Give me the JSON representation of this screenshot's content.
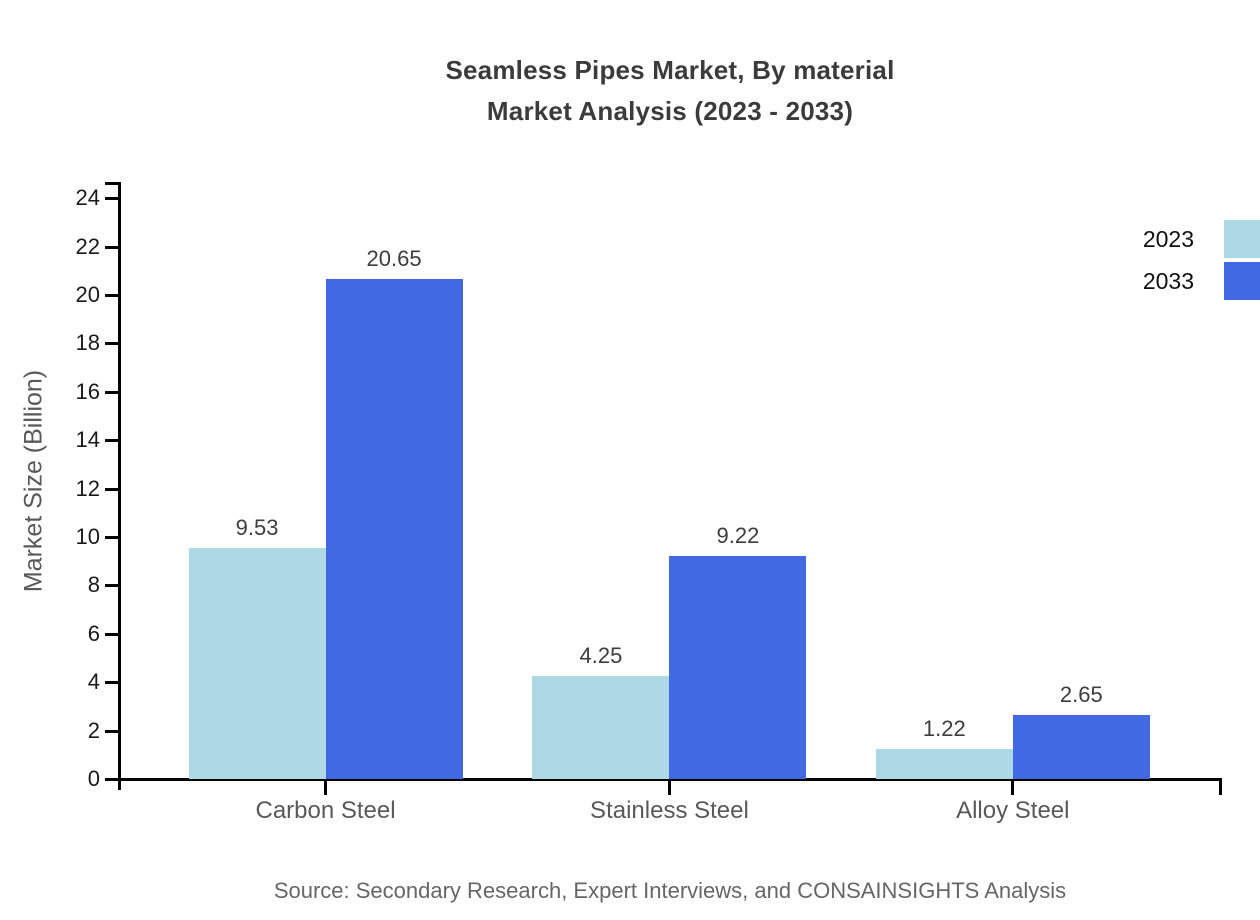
{
  "chart_data": {
    "type": "bar",
    "title_line1": "Seamless Pipes Market, By material",
    "title_line2": "Market Analysis (2023 - 2033)",
    "ylabel": "Market Size (Billion)",
    "xlabel": "",
    "categories": [
      "Carbon Steel",
      "Stainless Steel",
      "Alloy Steel"
    ],
    "series": [
      {
        "name": "2023",
        "color": "#ADD8E6",
        "values": [
          9.53,
          4.25,
          1.22
        ],
        "labels": [
          "9.53",
          "4.25",
          "1.22"
        ]
      },
      {
        "name": "2033",
        "color": "#4169E1",
        "values": [
          20.65,
          9.22,
          2.65
        ],
        "labels": [
          "20.65",
          "9.22",
          "2.65"
        ]
      }
    ],
    "y_ticks": [
      "0",
      "2",
      "4",
      "6",
      "8",
      "10",
      "12",
      "14",
      "16",
      "18",
      "20",
      "22",
      "24"
    ],
    "ylim": [
      0,
      24
    ],
    "grid": false,
    "legend_position": "right",
    "source_note": "Source: Secondary Research, Expert Interviews, and CONSAINSIGHTS Analysis"
  },
  "colors": {
    "axis": "#000000",
    "series_2023": "#ADD8E6",
    "series_2033": "#4169E1"
  }
}
